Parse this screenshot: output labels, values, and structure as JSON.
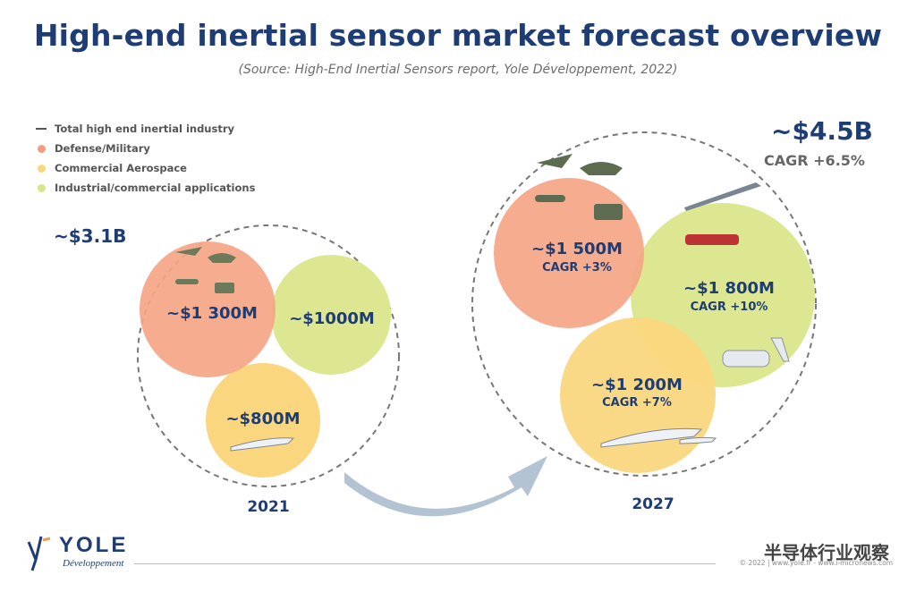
{
  "title": "High-end inertial sensor market forecast overview",
  "source": "(Source: High-End Inertial Sensors report, Yole Développement, 2022)",
  "legend": [
    {
      "label": "Total high end inertial industry",
      "color": "#555555"
    },
    {
      "label": "Defense/Military",
      "color": "#ef9f7e"
    },
    {
      "label": "Commercial Aerospace",
      "color": "#f8d87c"
    },
    {
      "label": "Industrial/commercial applications",
      "color": "#d8e68a"
    }
  ],
  "colors": {
    "defense": "#f4a585",
    "aero": "#fad77f",
    "industrial": "#dde791",
    "title": "#1f3d75",
    "arrow": "#b4c3d3"
  },
  "y2021": {
    "year": "2021",
    "total": "~$3.1B",
    "defense": "~$1 300M",
    "industrial": "~$1000M",
    "aero": "~$800M"
  },
  "y2027": {
    "year": "2027",
    "total": "~$4.5B",
    "total_cagr": "CAGR +6.5%",
    "defense": "~$1 500M",
    "defense_cagr": "CAGR +3%",
    "industrial": "~$1 800M",
    "industrial_cagr": "CAGR +10%",
    "aero": "~$1 200M",
    "aero_cagr": "CAGR +7%"
  },
  "logo": {
    "name": "YOLE",
    "sub": "Développement"
  },
  "footer": "© 2022 | www.yole.fr - www.i-micronews.com",
  "watermark": "半导体行业观察"
}
